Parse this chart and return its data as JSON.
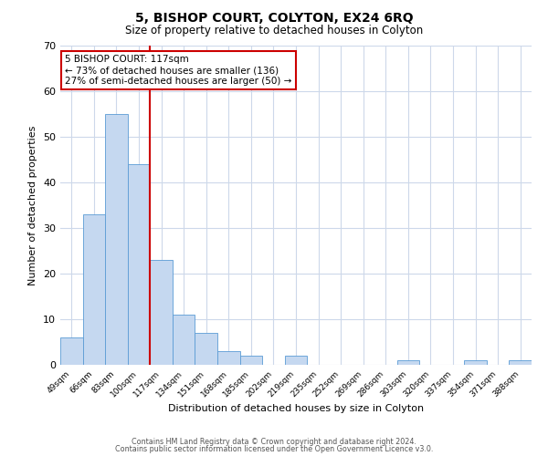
{
  "title": "5, BISHOP COURT, COLYTON, EX24 6RQ",
  "subtitle": "Size of property relative to detached houses in Colyton",
  "xlabel": "Distribution of detached houses by size in Colyton",
  "ylabel": "Number of detached properties",
  "bar_labels": [
    "49sqm",
    "66sqm",
    "83sqm",
    "100sqm",
    "117sqm",
    "134sqm",
    "151sqm",
    "168sqm",
    "185sqm",
    "202sqm",
    "219sqm",
    "235sqm",
    "252sqm",
    "269sqm",
    "286sqm",
    "303sqm",
    "320sqm",
    "337sqm",
    "354sqm",
    "371sqm",
    "388sqm"
  ],
  "bar_values": [
    6,
    33,
    55,
    44,
    23,
    11,
    7,
    3,
    2,
    0,
    2,
    0,
    0,
    0,
    0,
    1,
    0,
    0,
    1,
    0,
    1
  ],
  "bar_color": "#c5d8f0",
  "bar_edge_color": "#5b9bd5",
  "vline_color": "#cc0000",
  "vline_bar_index": 4,
  "annotation_title": "5 BISHOP COURT: 117sqm",
  "annotation_line1": "← 73% of detached houses are smaller (136)",
  "annotation_line2": "27% of semi-detached houses are larger (50) →",
  "annotation_box_color": "#ffffff",
  "annotation_box_edge": "#cc0000",
  "ylim": [
    0,
    70
  ],
  "yticks": [
    0,
    10,
    20,
    30,
    40,
    50,
    60,
    70
  ],
  "footer1": "Contains HM Land Registry data © Crown copyright and database right 2024.",
  "footer2": "Contains public sector information licensed under the Open Government Licence v3.0.",
  "background_color": "#ffffff",
  "grid_color": "#cdd8ea"
}
